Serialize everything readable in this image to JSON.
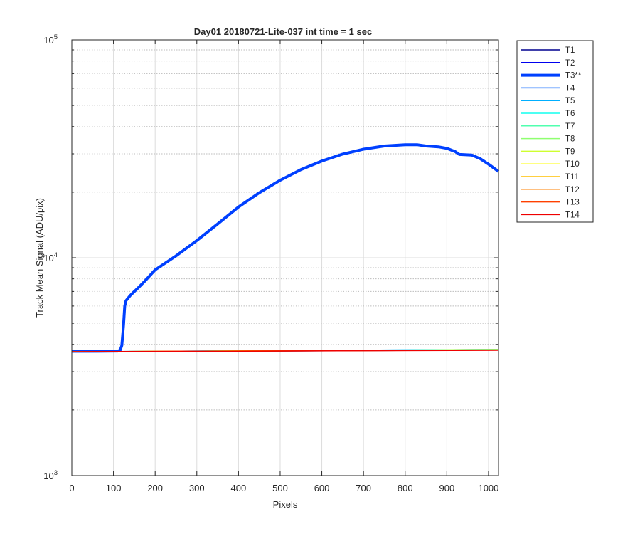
{
  "chart_data": {
    "type": "line",
    "title": "Day01 20180721-Lite-037 int time = 1 sec",
    "xlabel": "Pixels",
    "ylabel": "Track Mean Signal (ADU/pix)",
    "xlim": [
      0,
      1024
    ],
    "ylim": [
      1000,
      100000
    ],
    "yscale": "log",
    "grid": true,
    "legend_position": "outside-top-right",
    "x_ticks": [
      0,
      100,
      200,
      300,
      400,
      500,
      600,
      700,
      800,
      900,
      1000
    ],
    "y_ticks": [
      {
        "value": 1000,
        "base": "10",
        "exp": "3"
      },
      {
        "value": 10000,
        "base": "10",
        "exp": "4"
      },
      {
        "value": 100000,
        "base": "10",
        "exp": "5"
      }
    ],
    "series": [
      {
        "name": "T1",
        "color": "#00008f",
        "width": 1.5,
        "x": [
          0,
          1024
        ],
        "y": [
          3690,
          3770
        ]
      },
      {
        "name": "T2",
        "color": "#0000ef",
        "width": 1.5,
        "x": [
          0,
          1024
        ],
        "y": [
          3700,
          3780
        ]
      },
      {
        "name": "T3**",
        "color": "#0040ff",
        "width": 4,
        "x": [
          0,
          60,
          110,
          116,
          120,
          124,
          127,
          130,
          140,
          150,
          160,
          175,
          200,
          250,
          300,
          350,
          400,
          450,
          500,
          550,
          600,
          650,
          700,
          750,
          800,
          830,
          850,
          880,
          900,
          920,
          930,
          960,
          980,
          1000,
          1024
        ],
        "y": [
          3720,
          3720,
          3730,
          3760,
          3950,
          4900,
          6000,
          6350,
          6700,
          7000,
          7300,
          7800,
          8800,
          10200,
          12000,
          14300,
          17100,
          19900,
          22700,
          25400,
          27800,
          29900,
          31500,
          32600,
          33000,
          33000,
          32600,
          32300,
          31800,
          30700,
          29800,
          29600,
          28500,
          26900,
          24900
        ]
      },
      {
        "name": "T4",
        "color": "#0060ff",
        "width": 1.5,
        "x": [
          0,
          1024
        ],
        "y": [
          3700,
          3790
        ]
      },
      {
        "name": "T5",
        "color": "#00afff",
        "width": 1.5,
        "x": [
          0,
          1024
        ],
        "y": [
          3700,
          3790
        ]
      },
      {
        "name": "T6",
        "color": "#10ffef",
        "width": 1.5,
        "x": [
          0,
          1024
        ],
        "y": [
          3700,
          3790
        ]
      },
      {
        "name": "T7",
        "color": "#50ffaf",
        "width": 1.5,
        "x": [
          0,
          1024
        ],
        "y": [
          3700,
          3785
        ]
      },
      {
        "name": "T8",
        "color": "#8fff70",
        "width": 1.5,
        "x": [
          0,
          1024
        ],
        "y": [
          3700,
          3785
        ]
      },
      {
        "name": "T9",
        "color": "#cfff30",
        "width": 1.5,
        "x": [
          0,
          1024
        ],
        "y": [
          3700,
          3780
        ]
      },
      {
        "name": "T10",
        "color": "#ffff00",
        "width": 1.5,
        "x": [
          0,
          1024
        ],
        "y": [
          3700,
          3780
        ]
      },
      {
        "name": "T11",
        "color": "#ffbf00",
        "width": 1.5,
        "x": [
          0,
          1024
        ],
        "y": [
          3700,
          3775
        ]
      },
      {
        "name": "T12",
        "color": "#ff8000",
        "width": 1.5,
        "x": [
          0,
          1024
        ],
        "y": [
          3700,
          3770
        ]
      },
      {
        "name": "T13",
        "color": "#ff4000",
        "width": 1.5,
        "x": [
          0,
          1024
        ],
        "y": [
          3700,
          3765
        ]
      },
      {
        "name": "T14",
        "color": "#ef0000",
        "width": 1.5,
        "x": [
          0,
          1024
        ],
        "y": [
          3705,
          3760
        ]
      }
    ]
  }
}
